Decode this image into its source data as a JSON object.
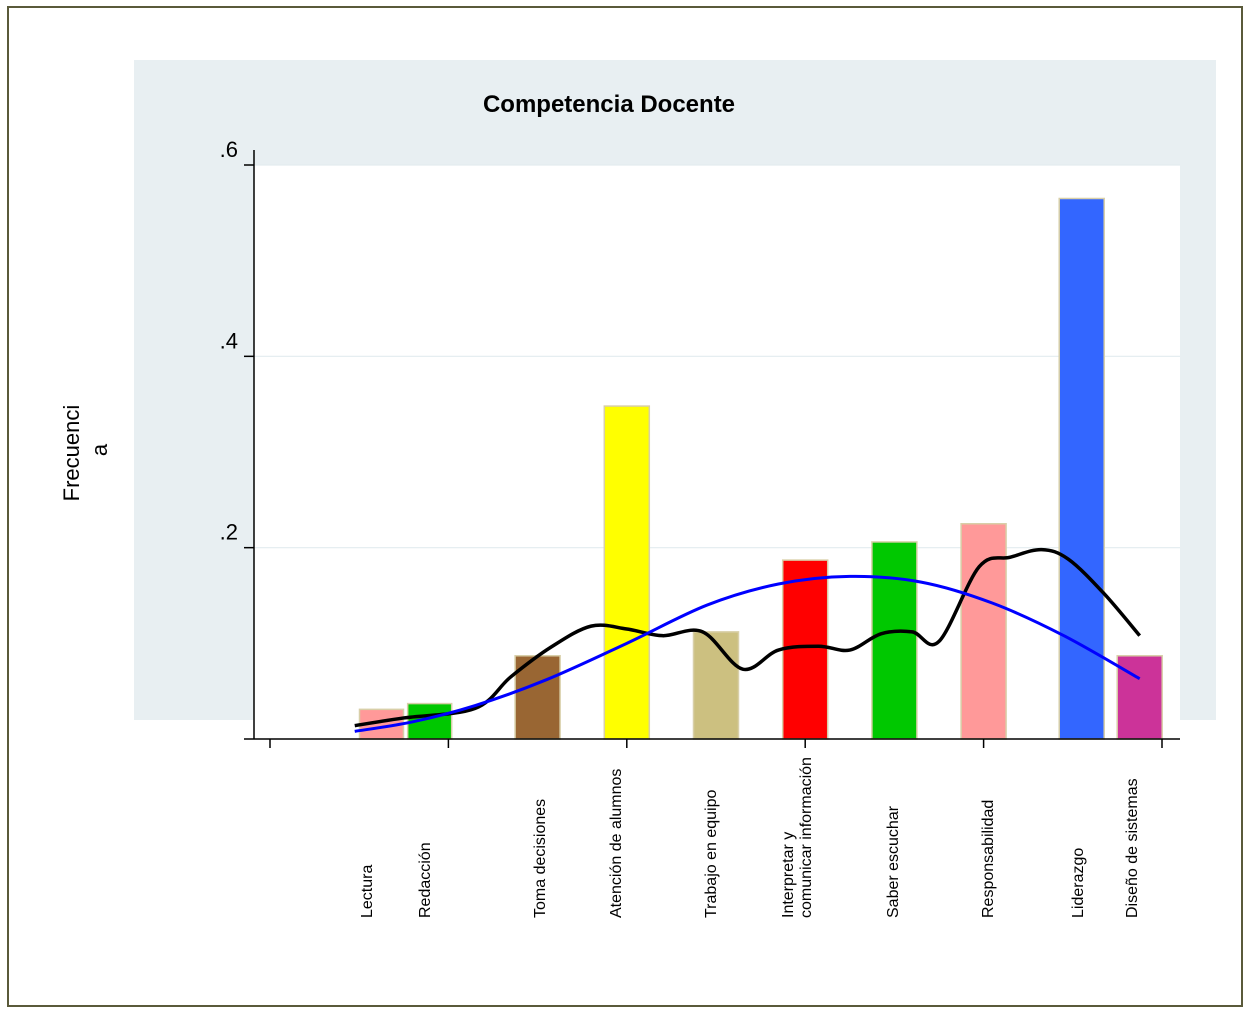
{
  "chart_data": {
    "type": "bar",
    "title": "Competencia Docente",
    "xlabel": "",
    "ylabel": [
      "Frecuenci",
      "a"
    ],
    "ylim": [
      0,
      0.6
    ],
    "yticks": [
      0,
      0.2,
      0.4,
      0.6
    ],
    "ytick_labels": [
      "",
      ".2",
      ".4",
      ".6"
    ],
    "grid": true,
    "legend": "none",
    "categories": [
      [
        "Lectura"
      ],
      [
        "Redacción"
      ],
      [
        "Toma decisiones"
      ],
      [
        "Atención de alumnos"
      ],
      [
        "Trabajo en equipo"
      ],
      [
        "Interpretar y",
        "comunicar información"
      ],
      [
        "Saber escuchar"
      ],
      [
        "Responsabilidad"
      ],
      [
        "Liderazgo"
      ],
      [
        "Diseño de sistemas"
      ]
    ],
    "values": [
      0.031,
      0.037,
      0.087,
      0.348,
      0.112,
      0.187,
      0.206,
      0.225,
      0.565,
      0.087
    ],
    "bar_colors": [
      "#ff9999",
      "#00c800",
      "#996633",
      "#ffff00",
      "#ccc080",
      "#ff0000",
      "#00c800",
      "#ff9999",
      "#3366ff",
      "#cc3399"
    ],
    "curves": [
      {
        "color": "#000000",
        "points": [
          [
            1.95,
            0.014
          ],
          [
            2.5,
            0.022
          ],
          [
            3.3,
            0.032
          ],
          [
            3.7,
            0.065
          ],
          [
            4.15,
            0.096
          ],
          [
            4.6,
            0.118
          ],
          [
            5.0,
            0.115
          ],
          [
            5.4,
            0.108
          ],
          [
            5.85,
            0.112
          ],
          [
            6.3,
            0.073
          ],
          [
            6.7,
            0.093
          ],
          [
            7.15,
            0.097
          ],
          [
            7.5,
            0.093
          ],
          [
            7.85,
            0.11
          ],
          [
            8.2,
            0.112
          ],
          [
            8.5,
            0.102
          ],
          [
            8.95,
            0.18
          ],
          [
            9.3,
            0.19
          ],
          [
            9.65,
            0.198
          ],
          [
            9.95,
            0.188
          ],
          [
            10.35,
            0.152
          ],
          [
            10.75,
            0.108
          ]
        ]
      },
      {
        "color": "#0000ff",
        "points": [
          [
            1.95,
            0.008
          ],
          [
            2.6,
            0.018
          ],
          [
            3.3,
            0.035
          ],
          [
            4.1,
            0.062
          ],
          [
            5.0,
            0.1
          ],
          [
            5.9,
            0.14
          ],
          [
            6.7,
            0.162
          ],
          [
            7.5,
            0.17
          ],
          [
            8.3,
            0.164
          ],
          [
            9.1,
            0.142
          ],
          [
            9.9,
            0.108
          ],
          [
            10.75,
            0.063
          ]
        ]
      }
    ]
  }
}
